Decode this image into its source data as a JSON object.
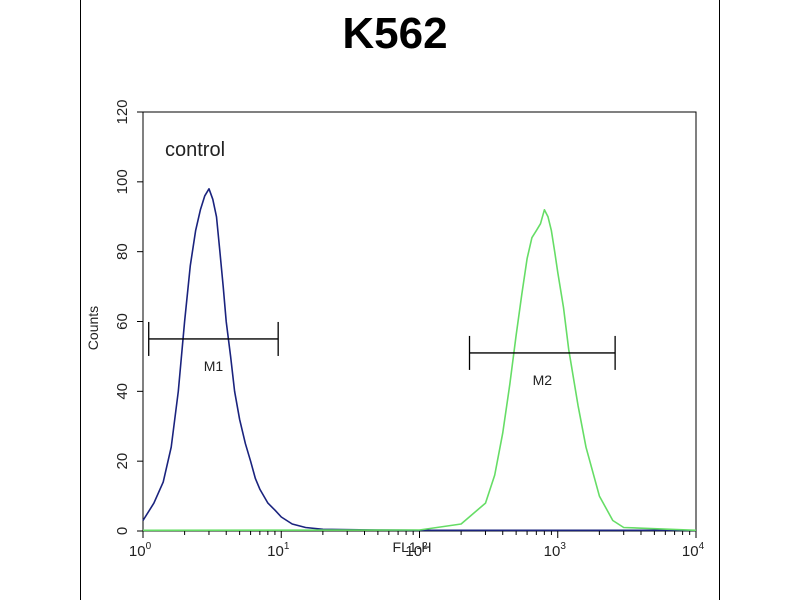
{
  "chart_data": {
    "type": "line",
    "title": "K562",
    "xlabel": "FL1-H",
    "ylabel": "Counts",
    "x_scale": "log",
    "xlim": [
      1,
      10000
    ],
    "ylim": [
      0,
      120
    ],
    "x_ticks": [
      {
        "value": 1,
        "base": "10",
        "exp": "0"
      },
      {
        "value": 10,
        "base": "10",
        "exp": "1"
      },
      {
        "value": 100,
        "base": "10",
        "exp": "2"
      },
      {
        "value": 1000,
        "base": "10",
        "exp": "3"
      },
      {
        "value": 10000,
        "base": "10",
        "exp": "4"
      }
    ],
    "y_ticks": [
      0,
      20,
      40,
      60,
      80,
      100,
      120
    ],
    "annotation": "control",
    "grid": false,
    "series": [
      {
        "color": "#1a237e",
        "x": [
          1.0,
          1.2,
          1.4,
          1.6,
          1.8,
          2.0,
          2.2,
          2.4,
          2.6,
          2.8,
          3.0,
          3.2,
          3.4,
          3.6,
          3.8,
          4.0,
          4.3,
          4.6,
          5.0,
          5.5,
          6.0,
          6.5,
          7.0,
          8.0,
          9.0,
          10.0,
          12.0,
          15.0,
          20.0,
          50.0,
          100.0,
          500.0,
          1000.0,
          10000.0
        ],
        "y": [
          3,
          8,
          14,
          24,
          40,
          60,
          76,
          86,
          92,
          96,
          98,
          95,
          90,
          80,
          70,
          60,
          50,
          40,
          32,
          25,
          20,
          15,
          12,
          8,
          6,
          4,
          2,
          1,
          0.5,
          0.3,
          0.2,
          0.2,
          0.2,
          0.2
        ]
      },
      {
        "color": "#66dd66",
        "x": [
          1.0,
          100.0,
          200.0,
          300.0,
          350.0,
          400.0,
          450.0,
          500.0,
          550.0,
          600.0,
          650.0,
          700.0,
          750.0,
          800.0,
          850.0,
          900.0,
          950.0,
          1000.0,
          1100.0,
          1200.0,
          1400.0,
          1600.0,
          2000.0,
          2500.0,
          3000.0,
          10000.0
        ],
        "y": [
          0.2,
          0.3,
          2,
          8,
          16,
          28,
          42,
          56,
          68,
          78,
          84,
          86,
          88,
          92,
          90,
          86,
          80,
          74,
          64,
          52,
          36,
          24,
          10,
          3,
          1,
          0.2
        ]
      }
    ],
    "markers": [
      {
        "label": "M1",
        "x_start": 1.1,
        "x_end": 9.5,
        "y": 55
      },
      {
        "label": "M2",
        "x_start": 230,
        "x_end": 2600,
        "y": 51
      }
    ]
  }
}
